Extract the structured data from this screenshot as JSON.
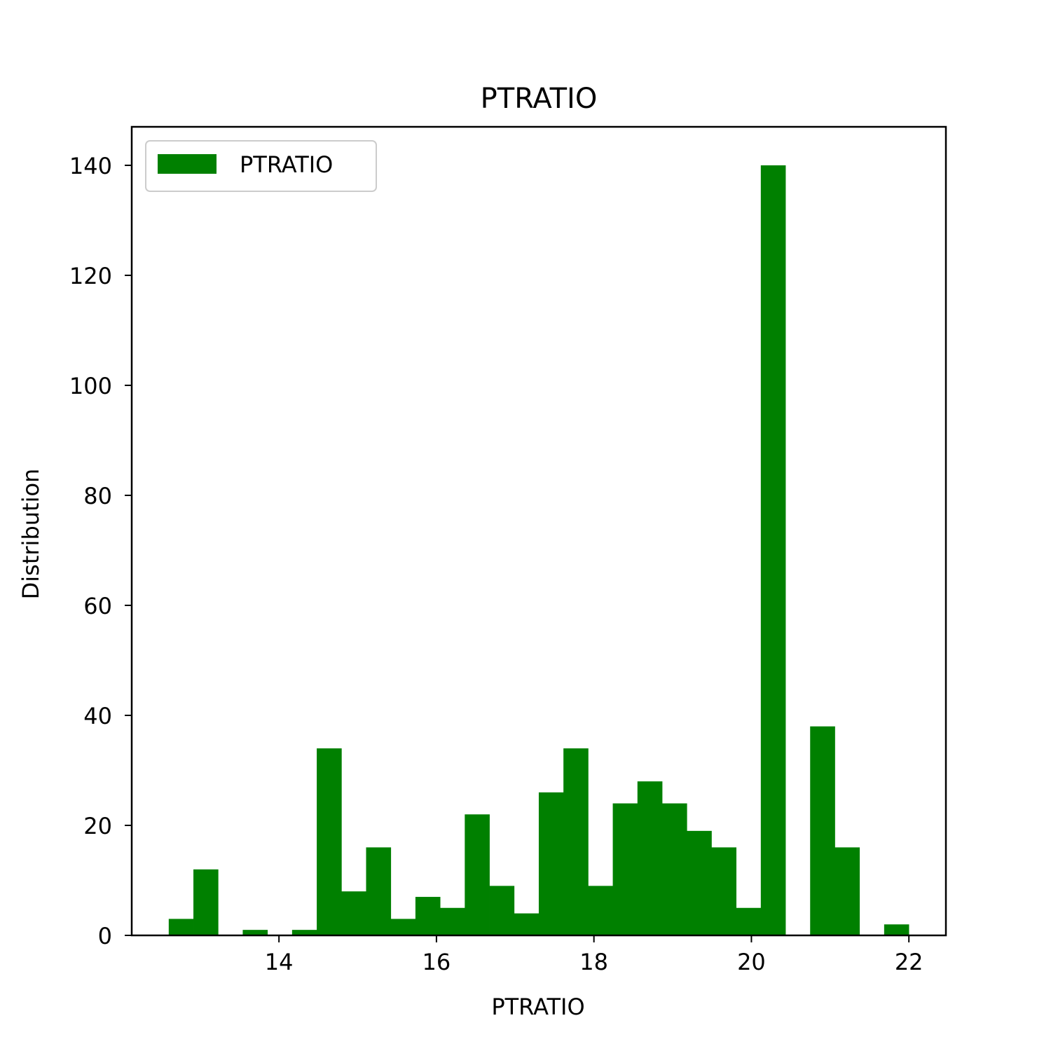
{
  "chart_data": {
    "type": "bar",
    "title": "PTRATIO",
    "xlabel": "PTRATIO",
    "ylabel": "Distribution",
    "xlim": [
      12.13,
      22.47
    ],
    "ylim": [
      0,
      147
    ],
    "xticks": [
      14,
      16,
      18,
      20,
      22
    ],
    "yticks": [
      0,
      20,
      40,
      60,
      80,
      100,
      120,
      140
    ],
    "grid": false,
    "legend": {
      "placement": "upper-left",
      "entries": [
        "PTRATIO"
      ]
    },
    "color": "#008000",
    "series": [
      {
        "name": "PTRATIO",
        "bin_start": 12.6,
        "bin_width": 0.3133,
        "values": [
          3,
          12,
          0,
          1,
          0,
          1,
          34,
          8,
          16,
          3,
          7,
          5,
          22,
          9,
          4,
          26,
          34,
          9,
          24,
          28,
          24,
          19,
          16,
          5,
          140,
          0,
          38,
          16,
          0,
          2
        ]
      }
    ]
  }
}
